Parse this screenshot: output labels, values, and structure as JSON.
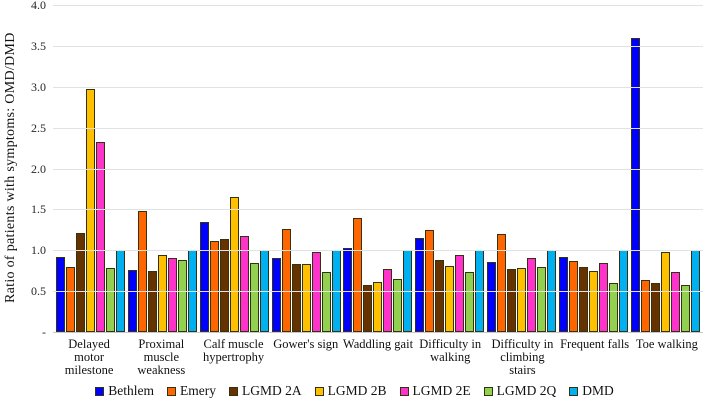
{
  "chart_data": {
    "type": "bar",
    "ylabel": "Ratio of  patients with symptoms: OMD/DMD",
    "ylim": [
      0,
      4
    ],
    "ytick_step": 0.5,
    "ytick_labels": [
      "4.0",
      "3.5",
      "3.0",
      "2.5",
      "2.0",
      "1.5",
      "1.0",
      "0.5",
      "-"
    ],
    "grid": true,
    "legend_position": "bottom",
    "categories": [
      "Delayed motor milestone",
      "Proximal muscle weakness",
      "Calf muscle hypertrophy",
      "Gower's sign",
      "Waddling gait",
      "Difficulty in walking",
      "Difficulty in climbing stairs",
      "Frequent falls",
      "Toe walking"
    ],
    "series": [
      {
        "name": "Bethlem",
        "color": "#0000FE",
        "values": [
          0.92,
          0.76,
          1.35,
          0.91,
          1.03,
          1.15,
          0.86,
          0.92,
          3.6
        ]
      },
      {
        "name": "Emery",
        "color": "#FF6600",
        "values": [
          0.79,
          1.48,
          1.11,
          1.26,
          1.4,
          1.25,
          1.2,
          0.87,
          0.63
        ]
      },
      {
        "name": "LGMD 2A",
        "color": "#663300",
        "values": [
          1.21,
          0.75,
          1.14,
          0.83,
          0.57,
          0.88,
          0.77,
          0.8,
          0.6
        ]
      },
      {
        "name": "LGMD 2B",
        "color": "#FFC000",
        "values": [
          2.97,
          0.94,
          1.65,
          0.83,
          0.61,
          0.81,
          0.78,
          0.75,
          0.98
        ]
      },
      {
        "name": "LGMD 2E",
        "color": "#FF33CC",
        "values": [
          2.32,
          0.91,
          1.18,
          0.98,
          0.77,
          0.94,
          0.91,
          0.85,
          0.73
        ]
      },
      {
        "name": "LGMD 2Q",
        "color": "#92D050",
        "values": [
          0.78,
          0.88,
          0.85,
          0.73,
          0.65,
          0.73,
          0.79,
          0.6,
          0.58
        ]
      },
      {
        "name": "DMD",
        "color": "#00B0F0",
        "values": [
          1.0,
          1.0,
          1.0,
          1.0,
          1.0,
          1.0,
          1.0,
          1.0,
          1.0
        ]
      }
    ],
    "colors": {
      "gridline": "#E2E2E2",
      "axis_line": "#C9C9C9",
      "bar_border": "#333311",
      "text": "#1A1A1A"
    }
  }
}
